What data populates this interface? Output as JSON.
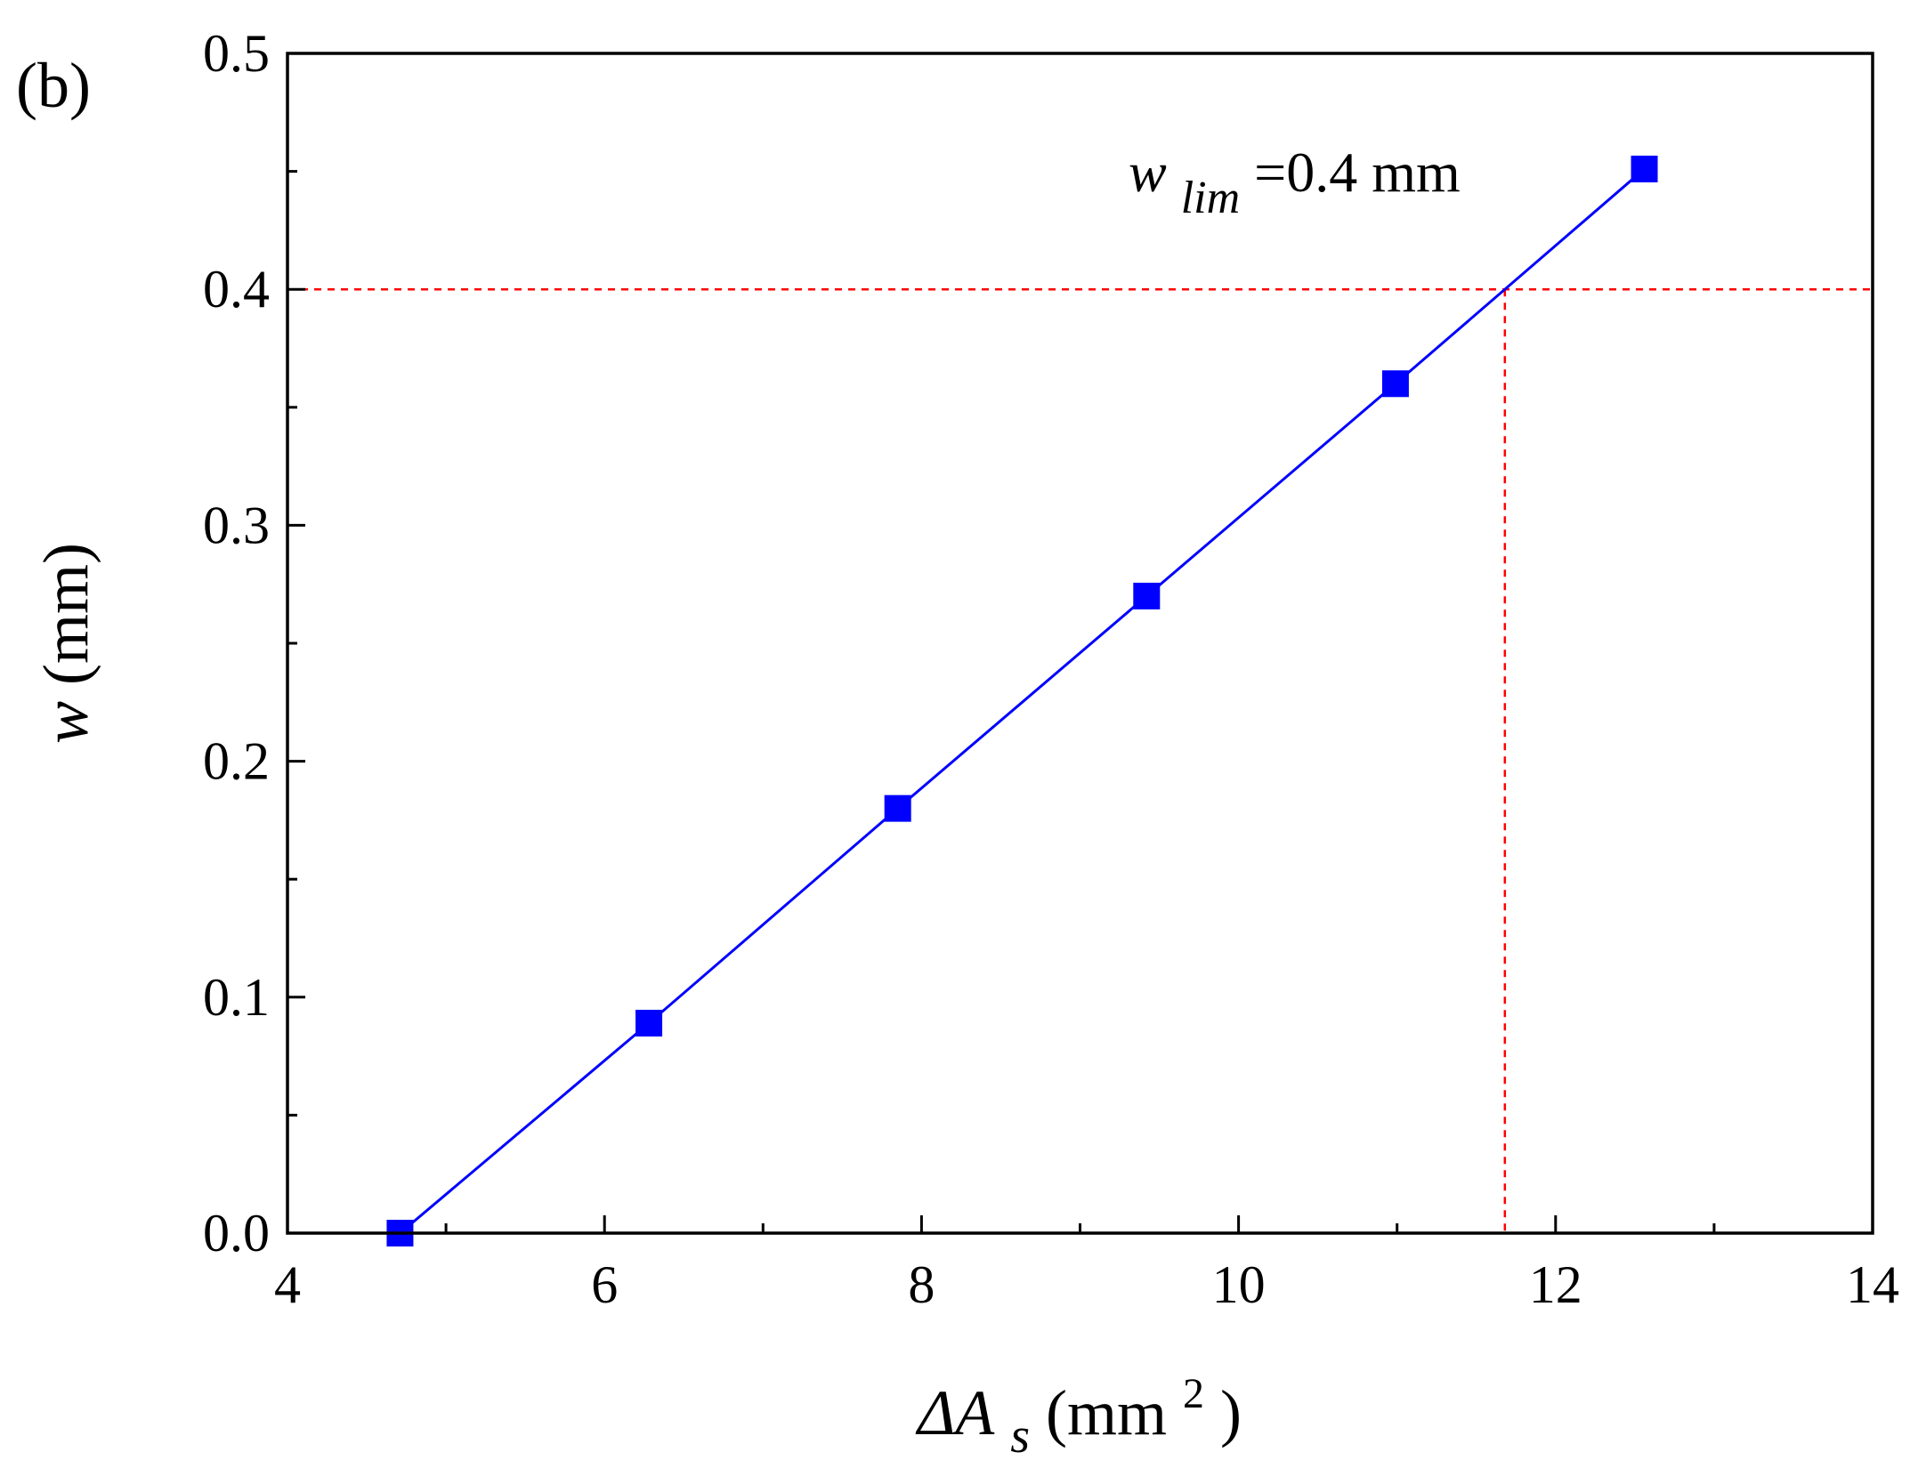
{
  "panel_label": "(b)",
  "colors": {
    "series": "#0000ff",
    "reference": "#ff0000",
    "axis": "#000000"
  },
  "chart_data": {
    "type": "line",
    "markers": "square",
    "x": [
      4.71,
      6.28,
      7.85,
      9.42,
      10.99,
      12.56
    ],
    "series": [
      {
        "values": [
          0.0,
          0.089,
          0.18,
          0.27,
          0.36,
          0.451
        ]
      }
    ],
    "xlim": [
      4,
      14
    ],
    "ylim": [
      0,
      0.5
    ],
    "xticks": [
      "4",
      "6",
      "8",
      "10",
      "12",
      "14"
    ],
    "yticks": [
      "0.0",
      "0.1",
      "0.2",
      "0.3",
      "0.4",
      "0.5"
    ],
    "x_tick_values": [
      4,
      6,
      8,
      10,
      12,
      14
    ],
    "y_tick_values": [
      0,
      0.1,
      0.2,
      0.3,
      0.4,
      0.5
    ],
    "x_minor_ticks": [
      5,
      7,
      9,
      11,
      13
    ],
    "y_minor_ticks": [
      0.05,
      0.15,
      0.25,
      0.35,
      0.45
    ],
    "xlabel": {
      "main": "ΔA",
      "sub": "s",
      "unit_open": " (mm",
      "sup": "2",
      "unit_close": ")"
    },
    "ylabel": {
      "main": "w",
      "unit": " (mm)"
    },
    "reference": {
      "y": 0.4,
      "x_at_limit": 11.68
    },
    "annotation": {
      "main": "w",
      "sub": "lim",
      "rest": " =0.4 mm"
    },
    "grid": false
  }
}
